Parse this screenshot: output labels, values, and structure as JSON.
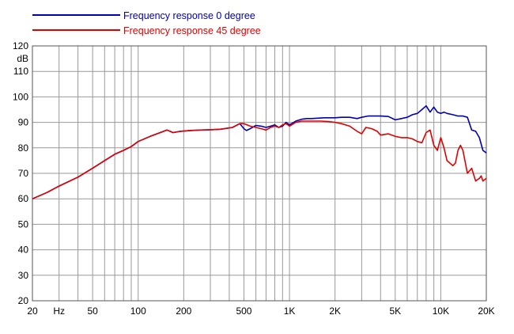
{
  "chart_data": {
    "type": "line",
    "title": "",
    "xlabel": "",
    "ylabel": "dB",
    "x_scale": "log",
    "xlim": [
      20,
      20000
    ],
    "ylim": [
      20,
      120
    ],
    "grid": true,
    "legend_position": "top-left",
    "x_ticks": [
      "20",
      "Hz",
      "50",
      "100",
      "200",
      "500",
      "1K",
      "2K",
      "5K",
      "10K",
      "20K"
    ],
    "y_ticks": [
      "120",
      "dB",
      "110",
      "100",
      "90",
      "80",
      "70",
      "60",
      "50",
      "40",
      "30",
      "20"
    ],
    "series": [
      {
        "name": "Frequency response 0 degree",
        "color": "#0000b4",
        "points": [
          [
            20,
            60
          ],
          [
            25,
            62.5
          ],
          [
            30,
            65
          ],
          [
            40,
            68.5
          ],
          [
            50,
            72
          ],
          [
            60,
            75
          ],
          [
            70,
            77.5
          ],
          [
            80,
            79
          ],
          [
            90,
            80.5
          ],
          [
            100,
            82.5
          ],
          [
            120,
            84.5
          ],
          [
            140,
            86
          ],
          [
            155,
            87
          ],
          [
            170,
            86
          ],
          [
            190,
            86.5
          ],
          [
            220,
            86.8
          ],
          [
            260,
            87
          ],
          [
            300,
            87.1
          ],
          [
            350,
            87.3
          ],
          [
            420,
            88
          ],
          [
            470,
            89.5
          ],
          [
            500,
            87.5
          ],
          [
            520,
            86.8
          ],
          [
            550,
            87.5
          ],
          [
            600,
            88.8
          ],
          [
            650,
            88.5
          ],
          [
            700,
            88
          ],
          [
            750,
            88.5
          ],
          [
            800,
            89
          ],
          [
            850,
            88
          ],
          [
            900,
            88.5
          ],
          [
            950,
            90
          ],
          [
            1000,
            89
          ],
          [
            1100,
            90.5
          ],
          [
            1200,
            91.2
          ],
          [
            1300,
            91.5
          ],
          [
            1400,
            91.5
          ],
          [
            1500,
            91.6
          ],
          [
            1700,
            91.8
          ],
          [
            2000,
            91.8
          ],
          [
            2200,
            92
          ],
          [
            2500,
            92
          ],
          [
            2800,
            91.5
          ],
          [
            3000,
            92
          ],
          [
            3300,
            92.5
          ],
          [
            3600,
            92.5
          ],
          [
            4000,
            92.5
          ],
          [
            4500,
            92.3
          ],
          [
            5000,
            91
          ],
          [
            5500,
            91.5
          ],
          [
            6000,
            92
          ],
          [
            6500,
            93
          ],
          [
            7000,
            93.5
          ],
          [
            7500,
            95
          ],
          [
            8000,
            96.5
          ],
          [
            8500,
            94
          ],
          [
            9000,
            96
          ],
          [
            9500,
            94
          ],
          [
            10000,
            93.5
          ],
          [
            10500,
            94
          ],
          [
            11000,
            93.5
          ],
          [
            12000,
            93
          ],
          [
            13000,
            92.5
          ],
          [
            14000,
            92.5
          ],
          [
            15000,
            92
          ],
          [
            16000,
            87
          ],
          [
            17000,
            86.5
          ],
          [
            18000,
            84
          ],
          [
            19000,
            79
          ],
          [
            20000,
            78
          ]
        ]
      },
      {
        "name": "Frequency response 45 degree",
        "color": "#e00000",
        "points": [
          [
            20,
            60
          ],
          [
            25,
            62.5
          ],
          [
            30,
            65
          ],
          [
            40,
            68.5
          ],
          [
            50,
            72
          ],
          [
            60,
            75
          ],
          [
            70,
            77.5
          ],
          [
            80,
            79
          ],
          [
            90,
            80.5
          ],
          [
            100,
            82.5
          ],
          [
            120,
            84.5
          ],
          [
            140,
            86
          ],
          [
            155,
            87
          ],
          [
            170,
            86
          ],
          [
            190,
            86.5
          ],
          [
            220,
            86.8
          ],
          [
            260,
            87
          ],
          [
            300,
            87.1
          ],
          [
            350,
            87.3
          ],
          [
            420,
            88
          ],
          [
            470,
            89.5
          ],
          [
            500,
            89.5
          ],
          [
            550,
            88.5
          ],
          [
            600,
            88
          ],
          [
            650,
            87.5
          ],
          [
            700,
            87
          ],
          [
            750,
            88
          ],
          [
            800,
            88.5
          ],
          [
            850,
            88
          ],
          [
            900,
            89
          ],
          [
            950,
            89.5
          ],
          [
            1000,
            88.5
          ],
          [
            1100,
            90
          ],
          [
            1200,
            90.5
          ],
          [
            1400,
            90.5
          ],
          [
            1600,
            90.5
          ],
          [
            1800,
            90.3
          ],
          [
            2000,
            90
          ],
          [
            2200,
            89.5
          ],
          [
            2500,
            88.5
          ],
          [
            2800,
            86.5
          ],
          [
            3000,
            85.5
          ],
          [
            3200,
            88
          ],
          [
            3500,
            87.5
          ],
          [
            3800,
            86.5
          ],
          [
            4000,
            85
          ],
          [
            4500,
            85.5
          ],
          [
            5000,
            84.5
          ],
          [
            5500,
            84
          ],
          [
            6000,
            84
          ],
          [
            6500,
            83.5
          ],
          [
            7000,
            82.5
          ],
          [
            7500,
            82
          ],
          [
            8000,
            86
          ],
          [
            8500,
            87
          ],
          [
            9000,
            81
          ],
          [
            9500,
            79
          ],
          [
            10000,
            84
          ],
          [
            10500,
            80
          ],
          [
            11000,
            75
          ],
          [
            12000,
            73
          ],
          [
            12500,
            74
          ],
          [
            13000,
            79
          ],
          [
            13500,
            81
          ],
          [
            14000,
            79
          ],
          [
            15000,
            70
          ],
          [
            16000,
            72
          ],
          [
            17000,
            67
          ],
          [
            18000,
            68
          ],
          [
            18500,
            69
          ],
          [
            19000,
            67
          ],
          [
            20000,
            68
          ]
        ]
      }
    ]
  }
}
